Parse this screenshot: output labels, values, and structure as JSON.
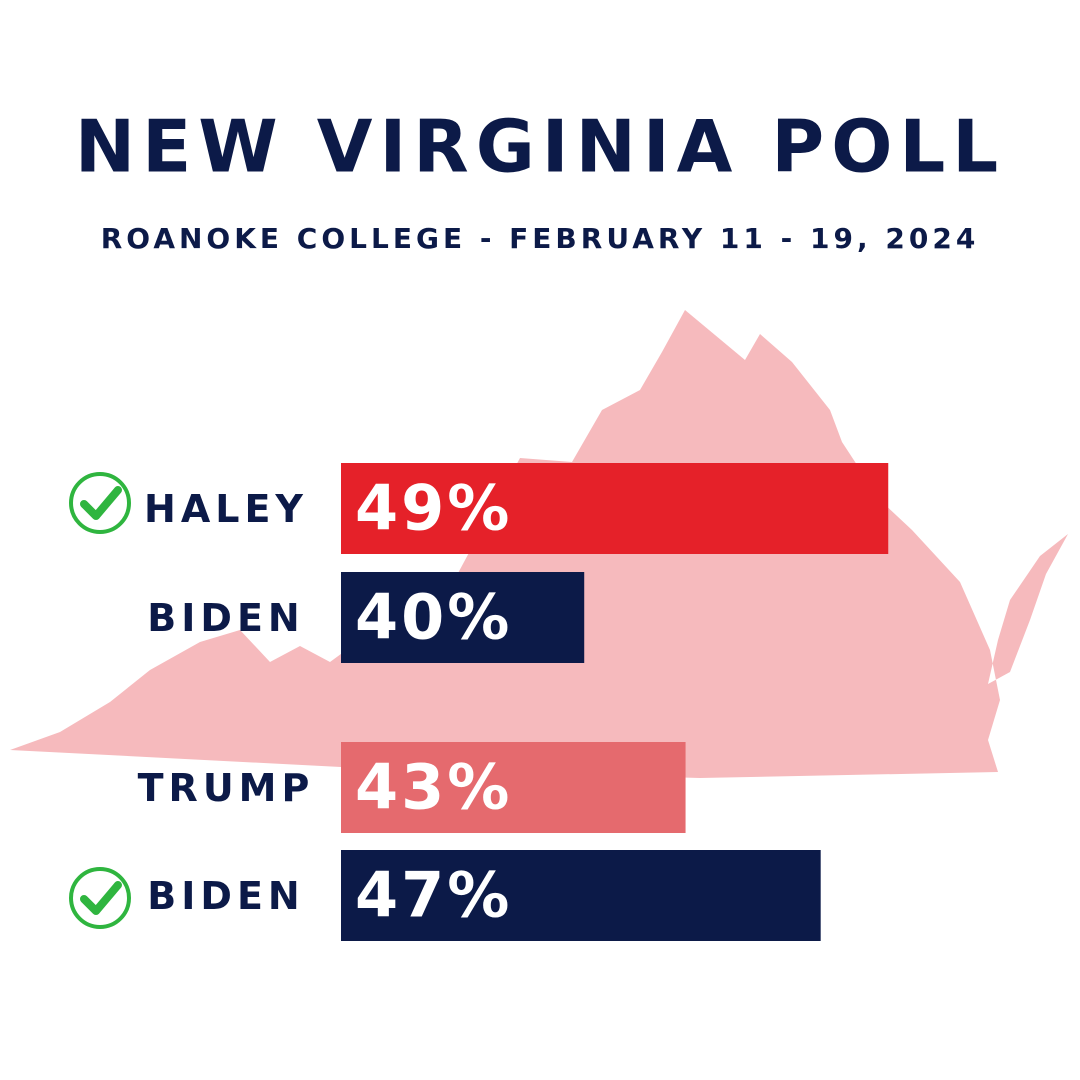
{
  "chart_data": {
    "type": "hbar",
    "title": "NEW VIRGINIA POLL",
    "subtitle": "ROANOKE COLLEGE - FEBRUARY 11 - 19, 2024",
    "categories": [
      "HALEY",
      "BIDEN",
      "TRUMP",
      "BIDEN"
    ],
    "values": [
      49,
      40,
      43,
      47
    ],
    "value_labels": [
      "49%",
      "40%",
      "43%",
      "47%"
    ],
    "colors": [
      "#e52129",
      "#0c1a48",
      "#e56a6e",
      "#0c1a48"
    ],
    "xlim": [
      32.8,
      49.2
    ]
  }
}
